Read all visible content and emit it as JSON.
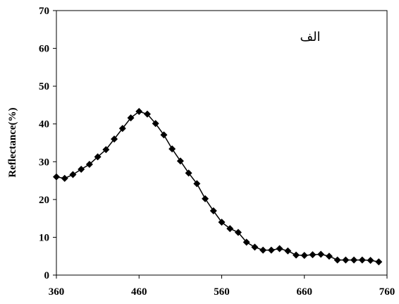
{
  "chart_data": {
    "type": "line",
    "title": "",
    "xlabel": "",
    "ylabel": "Reflectance(%)",
    "annotation": "الف",
    "xlim": [
      360,
      760
    ],
    "ylim": [
      0,
      70
    ],
    "xticks": [
      360,
      460,
      560,
      660,
      760
    ],
    "yticks": [
      0,
      10,
      20,
      30,
      40,
      50,
      60,
      70
    ],
    "grid": false,
    "legend": "none",
    "marker": "diamond",
    "color": "#000000",
    "series": [
      {
        "x": [
          360,
          370,
          380,
          390,
          400,
          410,
          420,
          430,
          440,
          450,
          460,
          470,
          480,
          490,
          500,
          510,
          520,
          530,
          540,
          550,
          560,
          570,
          580,
          590,
          600,
          610,
          620,
          630,
          640,
          650,
          660,
          670,
          680,
          690,
          700,
          710,
          720,
          730,
          740,
          750
        ],
        "values": [
          26.0,
          25.6,
          26.6,
          28.0,
          29.3,
          31.3,
          33.2,
          36.0,
          38.8,
          41.6,
          43.3,
          42.6,
          40.1,
          37.1,
          33.4,
          30.2,
          27.0,
          24.2,
          20.2,
          17.0,
          14.0,
          12.3,
          11.3,
          8.7,
          7.4,
          6.6,
          6.6,
          7.0,
          6.4,
          5.3,
          5.2,
          5.4,
          5.5,
          5.0,
          4.0,
          4.0,
          4.0,
          4.0,
          3.9,
          3.5
        ]
      }
    ]
  }
}
